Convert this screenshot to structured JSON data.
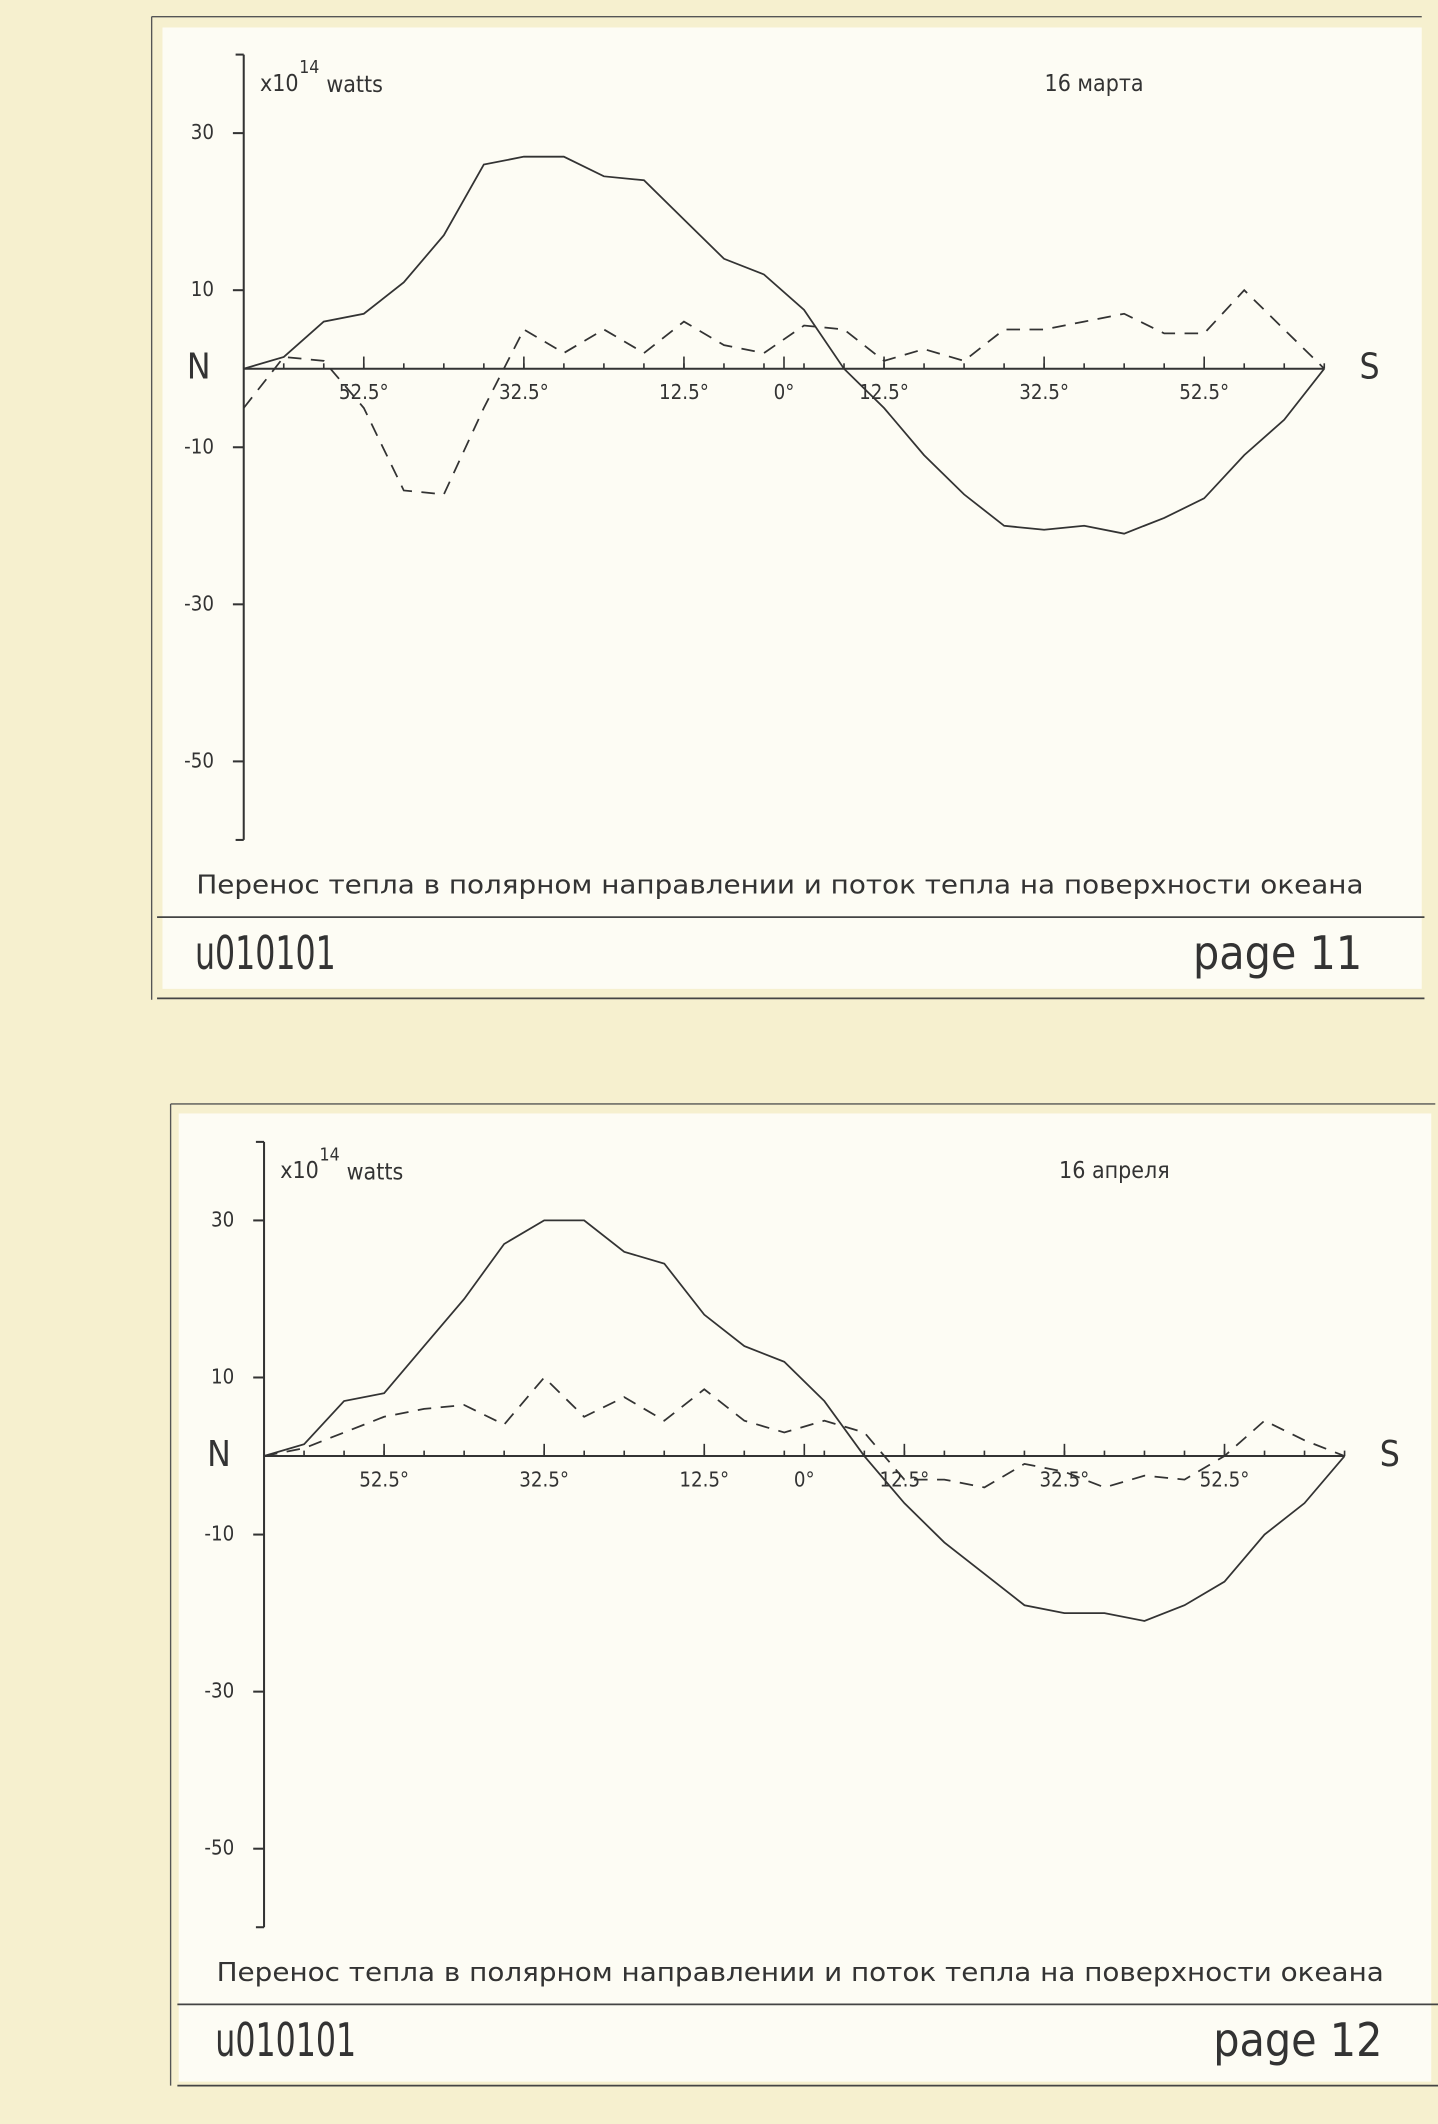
{
  "chart_data": [
    {
      "type": "line",
      "title": "16 марта",
      "y_unit": {
        "base": "x10",
        "exponent": "14",
        "unit": "watts"
      },
      "north_label": "N",
      "south_label": "S",
      "caption": "Перенос тепла в полярном направлении и поток тепла на поверхности океана",
      "footer_left": "u010101",
      "footer_right": "page 11",
      "x": [
        -67.5,
        -62.5,
        -57.5,
        -52.5,
        -47.5,
        -42.5,
        -37.5,
        -32.5,
        -27.5,
        -22.5,
        -17.5,
        -12.5,
        -7.5,
        -2.5,
        2.5,
        7.5,
        12.5,
        17.5,
        22.5,
        27.5,
        32.5,
        37.5,
        42.5,
        47.5,
        52.5,
        57.5,
        62.5,
        67.5
      ],
      "series": [
        {
          "color": "#333333",
          "dash": false,
          "values": [
            0,
            1.5,
            6,
            7,
            11,
            17,
            26,
            27,
            27,
            24.5,
            24,
            19,
            14,
            12,
            7.5,
            0,
            -5,
            -11,
            -16,
            -20,
            -20.5,
            -20,
            -21,
            -19,
            -16.5,
            -11,
            -6.5,
            0
          ]
        },
        {
          "color": "#333333",
          "dash": true,
          "values": [
            -5,
            1.5,
            1,
            -5,
            -15.5,
            -16,
            -5,
            5,
            2,
            5,
            2,
            6,
            3,
            2,
            5.5,
            5,
            1,
            2.5,
            1,
            5,
            5,
            6,
            7,
            4.5,
            4.5,
            10,
            5,
            0
          ]
        }
      ],
      "xlim": [
        -67.5,
        67.5
      ],
      "ylim": [
        -60,
        40
      ],
      "xticks": [
        {
          "value": -52.5,
          "label": "52.5°"
        },
        {
          "value": -32.5,
          "label": "32.5°"
        },
        {
          "value": -12.5,
          "label": "12.5°"
        },
        {
          "value": 0,
          "label": "0°"
        },
        {
          "value": 12.5,
          "label": "12.5°"
        },
        {
          "value": 32.5,
          "label": "32.5°"
        },
        {
          "value": 52.5,
          "label": "52.5°"
        }
      ],
      "yticks": [
        30,
        10,
        -10,
        -30,
        -50
      ]
    },
    {
      "type": "line",
      "title": "16 апреля",
      "y_unit": {
        "base": "x10",
        "exponent": "14",
        "unit": "watts"
      },
      "north_label": "N",
      "south_label": "S",
      "caption": "Перенос тепла в полярном направлении и поток тепла на поверхности океана",
      "footer_left": "u010101",
      "footer_right": "page 12",
      "x": [
        -67.5,
        -62.5,
        -57.5,
        -52.5,
        -47.5,
        -42.5,
        -37.5,
        -32.5,
        -27.5,
        -22.5,
        -17.5,
        -12.5,
        -7.5,
        -2.5,
        2.5,
        7.5,
        12.5,
        17.5,
        22.5,
        27.5,
        32.5,
        37.5,
        42.5,
        47.5,
        52.5,
        57.5,
        62.5,
        67.5
      ],
      "series": [
        {
          "color": "#333333",
          "dash": false,
          "values": [
            0,
            1.5,
            7,
            8,
            14,
            20,
            27,
            30,
            30,
            26,
            24.5,
            18,
            14,
            12,
            7,
            0,
            -6,
            -11,
            -15,
            -19,
            -20,
            -20,
            -21,
            -19,
            -16,
            -10,
            -6,
            0
          ]
        },
        {
          "color": "#333333",
          "dash": true,
          "values": [
            0,
            1,
            3,
            5,
            6,
            6.5,
            4,
            10,
            5,
            7.5,
            4.5,
            8.5,
            4.5,
            3,
            4.5,
            3,
            -3,
            -3,
            -4,
            -1,
            -2,
            -4,
            -2.5,
            -3,
            0,
            4.5,
            2,
            0
          ]
        }
      ],
      "xlim": [
        -67.5,
        67.5
      ],
      "ylim": [
        -60,
        40
      ],
      "xticks": [
        {
          "value": -52.5,
          "label": "52.5°"
        },
        {
          "value": -32.5,
          "label": "32.5°"
        },
        {
          "value": -12.5,
          "label": "12.5°"
        },
        {
          "value": 0,
          "label": "0°"
        },
        {
          "value": 12.5,
          "label": "12.5°"
        },
        {
          "value": 32.5,
          "label": "32.5°"
        },
        {
          "value": 52.5,
          "label": "52.5°"
        }
      ],
      "yticks": [
        30,
        10,
        -10,
        -30,
        -50
      ]
    }
  ]
}
